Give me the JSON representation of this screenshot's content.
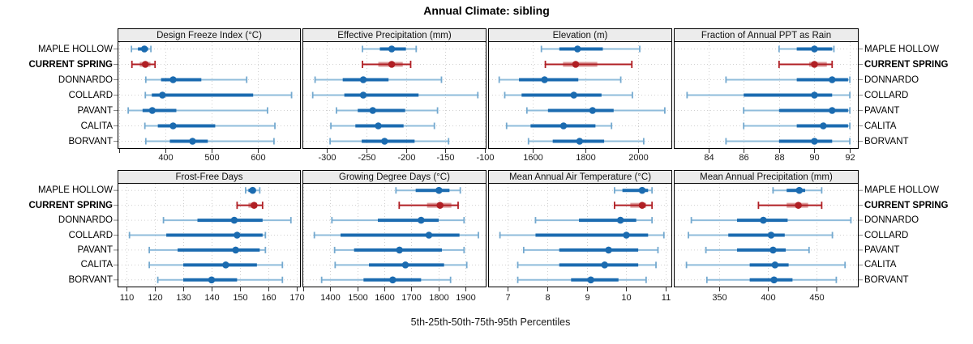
{
  "title": "Annual Climate: sibling",
  "caption": "5th-25th-50th-75th-95th Percentiles",
  "colors": {
    "primary": "#1b6bb0",
    "primary_light": "#8fbcdb",
    "primary_cap": "#74a9cf",
    "highlight": "#b01f24",
    "highlight_light": "#dc9b9b",
    "strip_bg": "#ececec",
    "panel_bg": "#ffffff",
    "grid": "#d0d0d0",
    "border": "#000000",
    "tick": "#333333"
  },
  "sites": [
    "MAPLE HOLLOW",
    "CURRENT SPRING",
    "DONNARDO",
    "COLLARD",
    "PAVANT",
    "CALITA",
    "BORVANT"
  ],
  "highlight_site": "CURRENT SPRING",
  "chart_data": {
    "type": "dotplot-percentile-intervals",
    "legend": "interval = 5th-95th, thick bar = 25th-75th, dot = 50th percentile",
    "percentiles": [
      "5th",
      "25th",
      "50th",
      "75th",
      "95th"
    ],
    "panels": [
      {
        "slug": "design-freeze-index",
        "title": "Design Freeze Index (°C)",
        "row": 0,
        "col": 0,
        "xlim": [
          296,
          692
        ],
        "ticks": [
          300,
          400,
          500,
          600
        ],
        "tick_labels": [
          "",
          "400",
          "500",
          "600"
        ],
        "values": {
          "MAPLE HOLLOW": [
            326,
            340,
            354,
            362,
            368
          ],
          "CURRENT SPRING": [
            327,
            344,
            356,
            367,
            377
          ],
          "DONNARDO": [
            357,
            390,
            416,
            477,
            575
          ],
          "COLLARD": [
            356,
            370,
            393,
            589,
            672
          ],
          "PAVANT": [
            319,
            350,
            371,
            423,
            620
          ],
          "CALITA": [
            355,
            383,
            416,
            507,
            636
          ],
          "BORVANT": [
            357,
            409,
            458,
            491,
            634
          ]
        }
      },
      {
        "slug": "effective-precipitation",
        "title": "Effective Precipitation (mm)",
        "row": 0,
        "col": 1,
        "xlim": [
          -331,
          -98
        ],
        "ticks": [
          -300,
          -250,
          -200,
          -150,
          -100
        ],
        "tick_labels": [
          "-300",
          "-250",
          "-200",
          "-150",
          "-100"
        ],
        "values": {
          "MAPLE HOLLOW": [
            -255,
            -233,
            -218,
            -200,
            -187
          ],
          "CURRENT SPRING": [
            -255,
            -235,
            -218,
            -204,
            -194
          ],
          "DONNARDO": [
            -315,
            -280,
            -254,
            -222,
            -155
          ],
          "COLLARD": [
            -318,
            -278,
            -254,
            -184,
            -109
          ],
          "PAVANT": [
            -288,
            -261,
            -242,
            -201,
            -160
          ],
          "CALITA": [
            -295,
            -264,
            -235,
            -203,
            -164
          ],
          "BORVANT": [
            -296,
            -256,
            -227,
            -189,
            -146
          ]
        }
      },
      {
        "slug": "elevation",
        "title": "Elevation (m)",
        "row": 0,
        "col": 2,
        "xlim": [
          1430,
          2128
        ],
        "ticks": [
          1600,
          1800,
          2000
        ],
        "tick_labels": [
          "1600",
          "1800",
          "2000"
        ],
        "values": {
          "MAPLE HOLLOW": [
            1632,
            1700,
            1769,
            1865,
            2005
          ],
          "CURRENT SPRING": [
            1647,
            1714,
            1762,
            1844,
            1975
          ],
          "DONNARDO": [
            1472,
            1547,
            1644,
            1772,
            1933
          ],
          "COLLARD": [
            1493,
            1557,
            1755,
            1860,
            1977
          ],
          "PAVANT": [
            1577,
            1657,
            1826,
            1906,
            2100
          ],
          "CALITA": [
            1500,
            1591,
            1716,
            1837,
            1898
          ],
          "BORVANT": [
            1583,
            1675,
            1777,
            1870,
            2020
          ]
        }
      },
      {
        "slug": "fraction-annual-ppt-as-rain",
        "title": "Fraction of Annual PPT as Rain",
        "row": 0,
        "col": 3,
        "xlim": [
          82.05,
          92.5
        ],
        "ticks": [
          84,
          86,
          88,
          90,
          92
        ],
        "tick_labels": [
          "84",
          "86",
          "88",
          "90",
          "92"
        ],
        "values": {
          "MAPLE HOLLOW": [
            88,
            89,
            90,
            91,
            91.1
          ],
          "CURRENT SPRING": [
            88,
            89.7,
            90,
            90.7,
            91
          ],
          "DONNARDO": [
            85,
            89,
            91,
            91.9,
            92
          ],
          "COLLARD": [
            82.8,
            86,
            90,
            91,
            92
          ],
          "PAVANT": [
            86,
            88,
            91,
            91.9,
            92
          ],
          "CALITA": [
            86,
            89,
            90.5,
            91.9,
            92
          ],
          "BORVANT": [
            85,
            88,
            90,
            91,
            92
          ]
        }
      },
      {
        "slug": "frost-free-days",
        "title": "Frost-Free Days",
        "row": 1,
        "col": 0,
        "xlim": [
          106.8,
          171.5
        ],
        "ticks": [
          110,
          120,
          130,
          140,
          150,
          160,
          170
        ],
        "tick_labels": [
          "110",
          "120",
          "130",
          "140",
          "150",
          "160",
          "170"
        ],
        "values": {
          "MAPLE HOLLOW": [
            152,
            153,
            154.5,
            155.5,
            157
          ],
          "CURRENT SPRING": [
            149,
            153,
            155,
            156,
            158
          ],
          "DONNARDO": [
            123,
            135,
            148,
            158,
            168
          ],
          "COLLARD": [
            111,
            124,
            149,
            158,
            159
          ],
          "PAVANT": [
            118,
            128,
            148.5,
            157,
            159
          ],
          "CALITA": [
            118,
            130,
            145,
            156,
            165
          ],
          "BORVANT": [
            121,
            130,
            140,
            149,
            165
          ]
        }
      },
      {
        "slug": "growing-degree-days",
        "title": "Growing Degree Days (°C)",
        "row": 1,
        "col": 1,
        "xlim": [
          1297,
          1978
        ],
        "ticks": [
          1300,
          1400,
          1500,
          1600,
          1700,
          1800,
          1900
        ],
        "tick_labels": [
          "",
          "1400",
          "1500",
          "1600",
          "1700",
          "1800",
          "1900"
        ],
        "values": {
          "MAPLE HOLLOW": [
            1643,
            1716,
            1802,
            1841,
            1881
          ],
          "CURRENT SPRING": [
            1655,
            1758,
            1806,
            1848,
            1873
          ],
          "DONNARDO": [
            1406,
            1576,
            1736,
            1801,
            1895
          ],
          "COLLARD": [
            1341,
            1438,
            1765,
            1878,
            1948
          ],
          "PAVANT": [
            1416,
            1488,
            1656,
            1813,
            1895
          ],
          "CALITA": [
            1418,
            1543,
            1678,
            1821,
            1905
          ],
          "BORVANT": [
            1368,
            1523,
            1631,
            1736,
            1845
          ]
        }
      },
      {
        "slug": "mean-annual-air-temperature",
        "title": "Mean Annual Air Temperature (°C)",
        "row": 1,
        "col": 2,
        "xlim": [
          6.5,
          11.16
        ],
        "ticks": [
          7,
          8,
          9,
          10,
          11
        ],
        "tick_labels": [
          "7",
          "8",
          "9",
          "10",
          "11"
        ],
        "values": {
          "MAPLE HOLLOW": [
            9.7,
            9.9,
            10.4,
            10.55,
            10.65
          ],
          "CURRENT SPRING": [
            9.7,
            10.1,
            10.4,
            10.5,
            10.65
          ],
          "DONNARDO": [
            7.7,
            8.8,
            9.85,
            10.25,
            10.65
          ],
          "COLLARD": [
            6.8,
            7.7,
            10.0,
            10.55,
            10.95
          ],
          "PAVANT": [
            7.4,
            8.3,
            9.55,
            10.3,
            10.8
          ],
          "CALITA": [
            7.25,
            8.3,
            9.45,
            10.3,
            10.75
          ],
          "BORVANT": [
            7.25,
            8.6,
            9.1,
            9.8,
            10.5
          ]
        }
      },
      {
        "slug": "mean-annual-precipitation",
        "title": "Mean Annual Precipitation (mm)",
        "row": 1,
        "col": 3,
        "xlim": [
          303,
          493
        ],
        "ticks": [
          350,
          400,
          450
        ],
        "tick_labels": [
          "350",
          "400",
          "450"
        ],
        "values": {
          "MAPLE HOLLOW": [
            405,
            419,
            432,
            438,
            455
          ],
          "CURRENT SPRING": [
            390,
            419,
            431,
            441,
            455
          ],
          "DONNARDO": [
            321,
            368,
            395,
            420,
            485
          ],
          "COLLARD": [
            318,
            359,
            403,
            417,
            466
          ],
          "PAVANT": [
            336,
            368,
            405,
            418,
            442
          ],
          "CALITA": [
            316,
            381,
            407,
            421,
            479
          ],
          "BORVANT": [
            337,
            381,
            406,
            425,
            470
          ]
        }
      }
    ]
  }
}
